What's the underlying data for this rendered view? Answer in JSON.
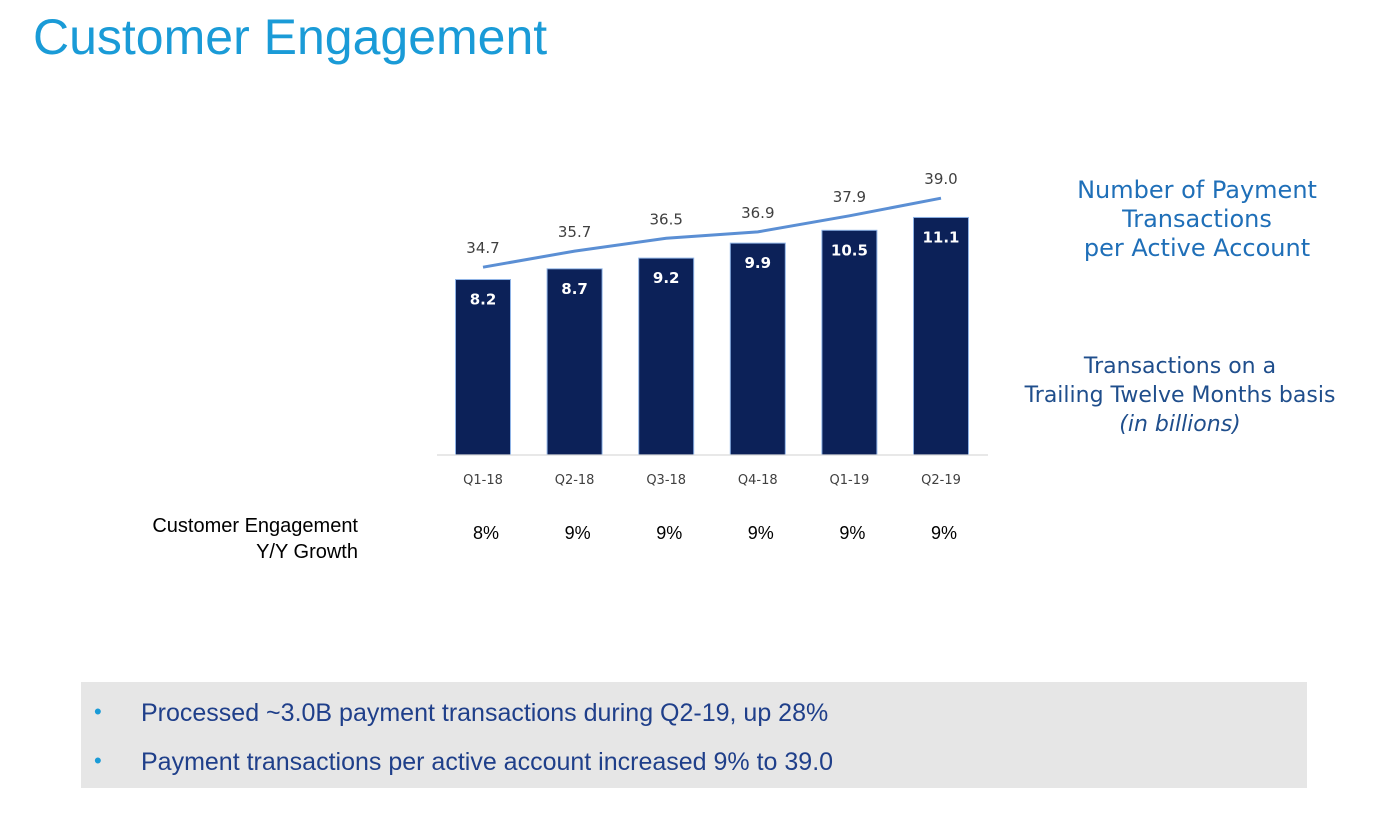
{
  "title": "Customer Engagement",
  "legend": {
    "line_line1": "Number of Payment Transactions",
    "line_line2": "per Active Account",
    "bars_line1": "Transactions on a",
    "bars_line2": "Trailing Twelve Months basis",
    "bars_line3": "(in billions)"
  },
  "growth_row": {
    "label_line1": "Customer Engagement",
    "label_line2": "Y/Y Growth",
    "values": [
      "8%",
      "9%",
      "9%",
      "9%",
      "9%",
      "9%"
    ]
  },
  "callout": {
    "bullets": [
      "Processed ~3.0B payment transactions during Q2-19, up 28%",
      "Payment transactions per active account increased 9% to 39.0"
    ]
  },
  "colors": {
    "title": "#1a9bd7",
    "bar": "#0c2158",
    "line": "#5b8fd4",
    "callout_bg": "#e6e6e6",
    "callout_text": "#1f3f8a"
  },
  "chart_data": {
    "type": "bar",
    "categories": [
      "Q1-18",
      "Q2-18",
      "Q3-18",
      "Q4-18",
      "Q1-19",
      "Q2-19"
    ],
    "series": [
      {
        "type": "bar",
        "values": [
          8.2,
          8.7,
          9.2,
          9.9,
          10.5,
          11.1
        ],
        "value_labels": [
          "8.2",
          "8.7",
          "9.2",
          "9.9",
          "10.5",
          "11.1"
        ]
      },
      {
        "type": "line",
        "values": [
          34.7,
          35.7,
          36.5,
          36.9,
          37.9,
          39.0
        ],
        "value_labels": [
          "34.7",
          "35.7",
          "36.5",
          "36.9",
          "37.9",
          "39.0"
        ]
      }
    ],
    "bar_ylim": [
      0,
      12
    ],
    "line_ylim": [
      23,
      42
    ],
    "grid": false
  }
}
